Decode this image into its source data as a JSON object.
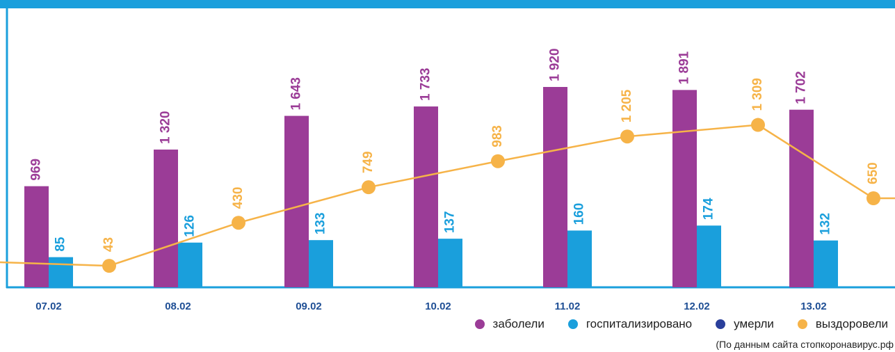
{
  "colors": {
    "band": "#1a9fdc",
    "frame": "#1a9fdc",
    "sick": "#9b3c97",
    "hospitalized": "#1a9fdc",
    "died": "#2a3f9b",
    "recovered": "#f6b348",
    "date_labels": "#1f4f95"
  },
  "chart_data": {
    "type": "bar",
    "categories": [
      "07.02",
      "08.02",
      "09.02",
      "10.02",
      "11.02",
      "12.02",
      "13.02"
    ],
    "series": [
      {
        "name": "заболели",
        "type": "bar",
        "values": [
          969,
          1320,
          1643,
          1733,
          1920,
          1891,
          1702
        ],
        "labels": [
          "969",
          "1 320",
          "1 643",
          "1 733",
          "1 920",
          "1 891",
          "1 702"
        ]
      },
      {
        "name": "госпитализировано",
        "type": "bar",
        "values": [
          85,
          126,
          133,
          137,
          160,
          174,
          132
        ],
        "labels": [
          "85",
          "126",
          "133",
          "137",
          "160",
          "174",
          "132"
        ]
      },
      {
        "name": "выздоровели",
        "type": "line",
        "values": [
          43,
          430,
          749,
          983,
          1205,
          1309,
          650
        ],
        "labels": [
          "43",
          "430",
          "749",
          "983",
          "1 205",
          "1 309",
          "650"
        ]
      }
    ],
    "legend": [
      "заболели",
      "госпитализировано",
      "умерли",
      "выздоровели"
    ],
    "legend_placement": "bottom-right",
    "grid": false,
    "source_note": "(По данным сайта стопкоронавирус.рф"
  }
}
